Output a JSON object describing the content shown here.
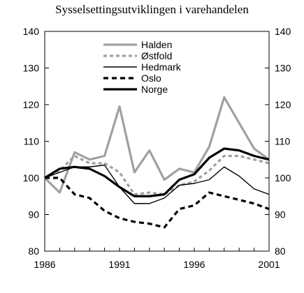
{
  "chart_data": {
    "type": "line",
    "title": "Sysselsettingsutviklingen i varehandelen",
    "xlabel": "",
    "ylabel": "",
    "x": [
      1986,
      1987,
      1988,
      1989,
      1990,
      1991,
      1992,
      1993,
      1994,
      1995,
      1996,
      1997,
      1998,
      1999,
      2000,
      2001
    ],
    "xticks": [
      1986,
      1991,
      1996,
      2001
    ],
    "yticks": [
      80,
      90,
      100,
      110,
      120,
      130,
      140
    ],
    "xlim": [
      1986,
      2001
    ],
    "ylim": [
      80,
      140
    ],
    "secondary_y_axis": true,
    "legend_position": "top-center",
    "series": [
      {
        "name": "Halden",
        "style": "solid",
        "color": "#a0a0a0",
        "width": "thick",
        "values": [
          100,
          96,
          107,
          105,
          106,
          119.5,
          101.5,
          107.5,
          99.5,
          102.5,
          101.5,
          108.5,
          122,
          115,
          108,
          105
        ]
      },
      {
        "name": "Østfold",
        "style": "dotted",
        "color": "#a0a0a0",
        "width": "thick",
        "values": [
          100,
          102,
          106,
          104,
          104,
          101.5,
          95.5,
          96,
          95.5,
          98,
          99,
          102,
          106,
          106,
          105,
          104
        ]
      },
      {
        "name": "Hedmark",
        "style": "solid",
        "color": "#000000",
        "width": "thin",
        "values": [
          100,
          101.5,
          103,
          103,
          103.5,
          97.5,
          93,
          93,
          94.5,
          98,
          98.5,
          99.5,
          103,
          100.5,
          97,
          95.5
        ]
      },
      {
        "name": "Oslo",
        "style": "dotted",
        "color": "#000000",
        "width": "thick",
        "values": [
          100,
          100,
          95.5,
          94.5,
          91,
          89,
          88,
          87.5,
          86.5,
          91.5,
          92.5,
          96,
          95,
          94,
          93,
          91.5
        ]
      },
      {
        "name": "Norge",
        "style": "solid",
        "color": "#000000",
        "width": "thick",
        "values": [
          100,
          102.5,
          103,
          102.5,
          100.5,
          97.5,
          95,
          95,
          95.5,
          99.5,
          101,
          105.5,
          108,
          107.5,
          106,
          105
        ]
      }
    ]
  }
}
